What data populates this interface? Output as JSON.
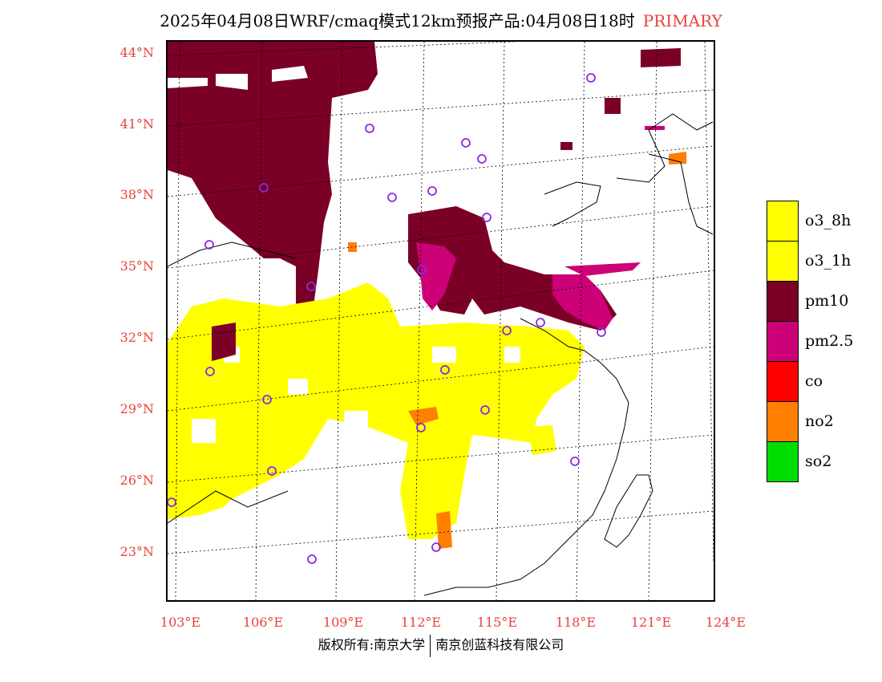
{
  "title": {
    "main": "2025年04月08日WRF/cmaq模式12km预报产品:04月08日18时",
    "tag": "PRIMARY"
  },
  "axes": {
    "lat_labels": [
      "44°N",
      "41°N",
      "38°N",
      "35°N",
      "32°N",
      "29°N",
      "26°N",
      "23°N"
    ],
    "lon_labels": [
      "103°E",
      "106°E",
      "109°E",
      "112°E",
      "115°E",
      "118°E",
      "121°E",
      "124°E"
    ]
  },
  "legend": [
    {
      "label": "o3_8h",
      "color": "#ffff00"
    },
    {
      "label": "o3_1h",
      "color": "#ffff00"
    },
    {
      "label": "pm10",
      "color": "#7a0026"
    },
    {
      "label": "pm2.5",
      "color": "#cc0077"
    },
    {
      "label": "co",
      "color": "#ff0000"
    },
    {
      "label": "no2",
      "color": "#ff7f00"
    },
    {
      "label": "so2",
      "color": "#00dd00"
    }
  ],
  "footer": {
    "left": "版权所有:南京大学",
    "right": "南京创蓝科技有限公司"
  },
  "colors": {
    "axis_label": "#e8413c",
    "tag": "#e8413c",
    "station_marker": "#8a2be2"
  }
}
